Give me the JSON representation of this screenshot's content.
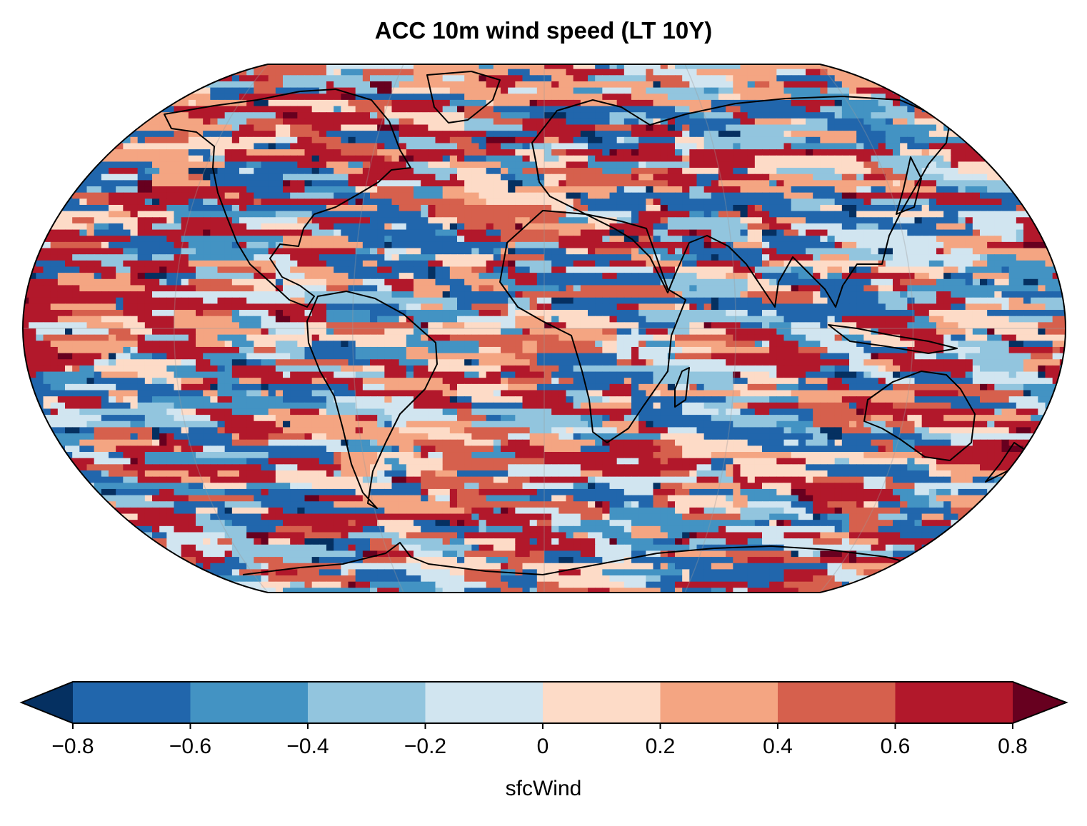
{
  "title": "ACC 10m wind speed (LT 10Y)",
  "chart_data": {
    "type": "heatmap",
    "title": "ACC 10m wind speed (LT 10Y)",
    "projection": "Robinson",
    "variable": "sfcWind",
    "colorbar": {
      "label": "sfcWind",
      "levels": [
        -0.8,
        -0.6,
        -0.4,
        -0.2,
        0,
        0.2,
        0.4,
        0.6,
        0.8
      ],
      "tick_labels": [
        "−0.8",
        "−0.6",
        "−0.4",
        "−0.2",
        "0",
        "0.2",
        "0.4",
        "0.6",
        "0.8"
      ],
      "colors": [
        "#2166ac",
        "#4393c3",
        "#92c5de",
        "#d1e5f0",
        "#fddbc7",
        "#f4a582",
        "#d6604d",
        "#b2182b"
      ],
      "under_color": "#053061",
      "over_color": "#67001f",
      "extend": "both"
    }
  }
}
